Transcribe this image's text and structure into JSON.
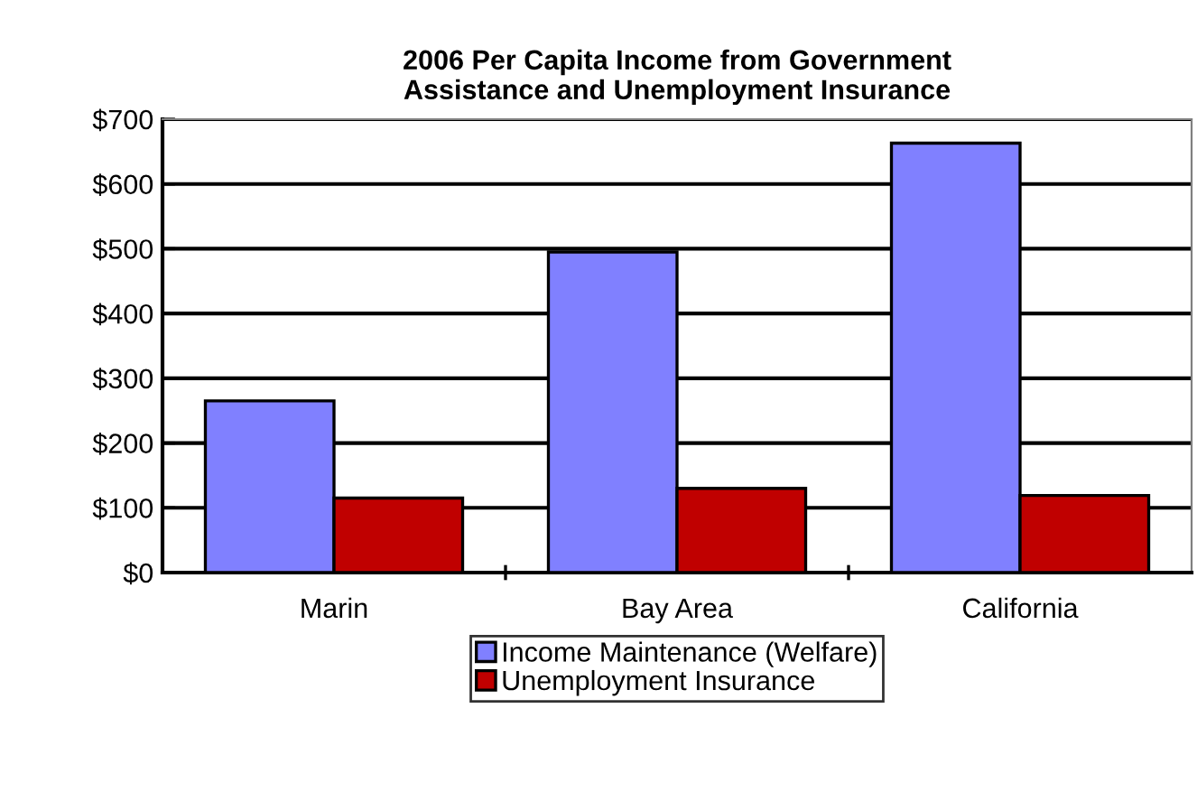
{
  "chart_data": {
    "type": "bar",
    "title": "2006 Per Capita Income from Government\nAssistance and Unemployment Insurance",
    "categories": [
      "Marin",
      "Bay Area",
      "California"
    ],
    "series": [
      {
        "name": "Income Maintenance (Welfare)",
        "color": "#8080ff",
        "values": [
          265,
          495,
          663
        ]
      },
      {
        "name": "Unemployment Insurance",
        "color": "#c00000",
        "values": [
          115,
          130,
          119
        ]
      }
    ],
    "ylim": [
      0,
      700
    ],
    "yticks": [
      {
        "value": 0,
        "label": "$0"
      },
      {
        "value": 100,
        "label": "$100"
      },
      {
        "value": 200,
        "label": "$200"
      },
      {
        "value": 300,
        "label": "$300"
      },
      {
        "value": 400,
        "label": "$400"
      },
      {
        "value": 500,
        "label": "$500"
      },
      {
        "value": 600,
        "label": "$600"
      },
      {
        "value": 700,
        "label": "$700"
      }
    ],
    "grid": "y",
    "legend": "bottom"
  }
}
